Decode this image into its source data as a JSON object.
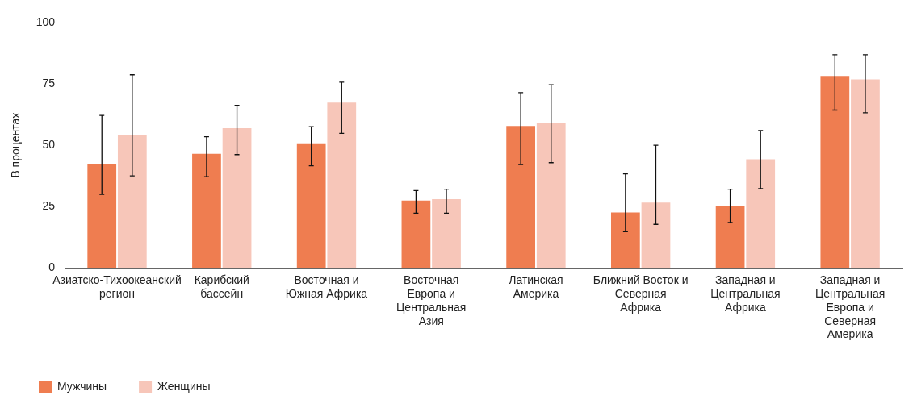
{
  "chart_data": {
    "type": "bar",
    "ylabel": "В процентах",
    "categories": [
      "Азиатско-Тихоокеанский регион",
      "Карибский бассейн",
      "Восточная и Южная Африка",
      "Восточная Европа и Центральная Азия",
      "Латинская Америка",
      "Ближний Восток и Северная Африка",
      "Западная и Центральная Африка",
      "Западная и Центральная Европа и Северная Америка"
    ],
    "series": [
      {
        "name": "Мужчины",
        "color": "#ef7d50",
        "values": [
          42.4,
          46.5,
          50.8,
          27.4,
          57.9,
          22.6,
          25.3,
          78.3
        ],
        "errors": [
          [
            29.9,
            62.2
          ],
          [
            37.2,
            53.5
          ],
          [
            41.6,
            57.6
          ],
          [
            22.3,
            31.5
          ],
          [
            42.1,
            71.5
          ],
          [
            14.7,
            38.3
          ],
          [
            18.5,
            32.1
          ],
          [
            64.4,
            87
          ]
        ]
      },
      {
        "name": "Женщины",
        "color": "#f7c6b9",
        "values": [
          54.3,
          57,
          67.4,
          28,
          59.2,
          26.6,
          44.3,
          76.9
        ],
        "errors": [
          [
            37.5,
            78.8
          ],
          [
            46.2,
            66.3
          ],
          [
            54.9,
            75.8
          ],
          [
            22.3,
            32.1
          ],
          [
            42.9,
            74.7
          ],
          [
            17.7,
            50
          ],
          [
            32.3,
            56
          ],
          [
            63.3,
            87
          ]
        ]
      }
    ],
    "ylim": [
      0,
      100
    ],
    "yticks": [
      0,
      25,
      50,
      75,
      100
    ],
    "grid": false,
    "legend": "bottom left"
  }
}
